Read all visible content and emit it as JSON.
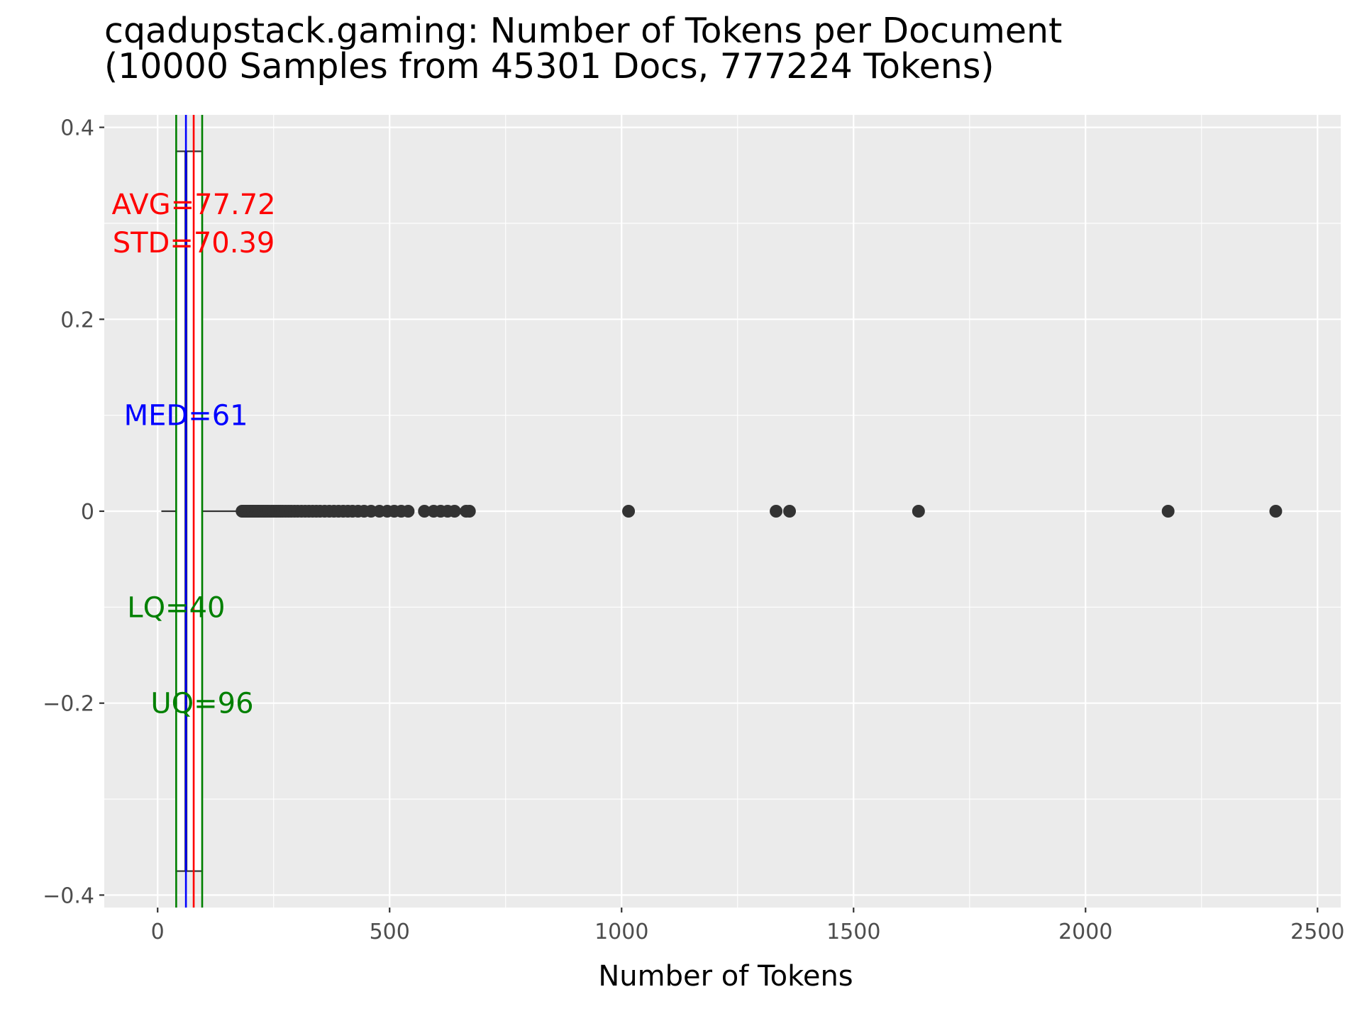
{
  "chart_data": {
    "type": "boxplot",
    "title_line1": "cqadupstack.gaming: Number of Tokens per Document",
    "title_line2": "(10000 Samples from 45301 Docs, 777224 Tokens)",
    "xlabel": "Number of Tokens",
    "ylabel": "",
    "xlim": [
      -115,
      2550
    ],
    "ylim": [
      -0.413,
      0.413
    ],
    "x_ticks": [
      0,
      500,
      1000,
      1500,
      2000,
      2500
    ],
    "x_tick_labels": [
      "0",
      "500",
      "1000",
      "1500",
      "2000",
      "2500"
    ],
    "y_ticks": [
      0.4,
      0.2,
      0,
      -0.2,
      -0.4
    ],
    "y_tick_labels": [
      "0.4",
      "0.2",
      "0",
      "−0.2",
      "−0.4"
    ],
    "grid": true,
    "box": {
      "lower_whisker": 8,
      "q1": 40,
      "median": 61,
      "q3": 96,
      "upper_whisker": 180,
      "y_extent": [
        -0.375,
        0.375
      ]
    },
    "outliers": [
      182,
      185,
      188,
      190,
      193,
      196,
      199,
      202,
      205,
      208,
      211,
      214,
      217,
      220,
      224,
      228,
      232,
      236,
      240,
      245,
      250,
      255,
      260,
      265,
      270,
      276,
      282,
      288,
      295,
      302,
      310,
      318,
      326,
      334,
      342,
      350,
      360,
      370,
      380,
      390,
      400,
      410,
      420,
      432,
      445,
      460,
      478,
      495,
      510,
      525,
      540,
      575,
      595,
      610,
      625,
      640,
      665,
      672,
      1015,
      1333,
      1362,
      1640,
      2178,
      2410
    ],
    "reference_lines": [
      {
        "name": "LQ",
        "value": 40,
        "color": "#008000"
      },
      {
        "name": "MED",
        "value": 61,
        "color": "#0000ff"
      },
      {
        "name": "AVG",
        "value": 77.72,
        "color": "#ff0000"
      },
      {
        "name": "UQ",
        "value": 96,
        "color": "#008000"
      }
    ],
    "annotations": [
      {
        "text": "AVG=77.72",
        "x": 77.72,
        "y": 0.32,
        "color": "#ff0000"
      },
      {
        "text": "STD=70.39",
        "x": 77.72,
        "y": 0.28,
        "color": "#ff0000"
      },
      {
        "text": "MED=61",
        "x": 61,
        "y": 0.1,
        "color": "#0000ff"
      },
      {
        "text": "LQ=40",
        "x": 40,
        "y": -0.1,
        "color": "#008000"
      },
      {
        "text": "UQ=96",
        "x": 96,
        "y": -0.2,
        "color": "#008000"
      }
    ],
    "colors": {
      "panel_background": "#ebebeb",
      "grid": "#ffffff",
      "points": "#333333",
      "box_line": "#333333"
    }
  }
}
